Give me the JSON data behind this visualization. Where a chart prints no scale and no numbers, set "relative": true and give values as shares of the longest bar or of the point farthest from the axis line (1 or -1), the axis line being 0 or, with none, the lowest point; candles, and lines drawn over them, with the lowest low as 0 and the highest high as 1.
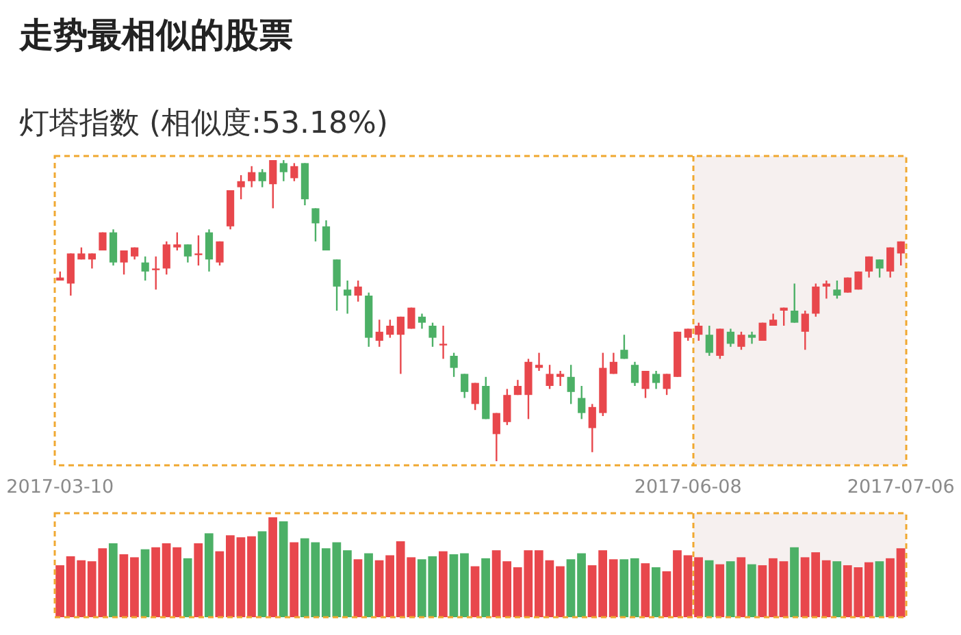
{
  "chart_data": [
    {
      "type": "candlestick",
      "title": "走势最相似的股票",
      "subtitle": "灯塔指数 (相似度:53.18%)",
      "relative": true,
      "categories": [
        "2017-03-10",
        null,
        null,
        null,
        null,
        null,
        null,
        null,
        null,
        null,
        null,
        null,
        null,
        null,
        null,
        null,
        null,
        null,
        null,
        null,
        null,
        null,
        null,
        null,
        null,
        null,
        null,
        null,
        null,
        null,
        null,
        null,
        null,
        null,
        null,
        null,
        null,
        null,
        null,
        null,
        null,
        null,
        null,
        null,
        null,
        null,
        null,
        null,
        null,
        null,
        null,
        null,
        null,
        null,
        null,
        null,
        null,
        null,
        null,
        "2017-06-08",
        null,
        null,
        null,
        null,
        null,
        null,
        null,
        null,
        null,
        null,
        null,
        null,
        null,
        null,
        null,
        null,
        null,
        null,
        null,
        "2017-07-06"
      ],
      "ohlc": [
        [
          0.6,
          0.63,
          0.6,
          0.61
        ],
        [
          0.59,
          0.69,
          0.55,
          0.69
        ],
        [
          0.67,
          0.71,
          0.67,
          0.69
        ],
        [
          0.67,
          0.69,
          0.64,
          0.69
        ],
        [
          0.7,
          0.76,
          0.7,
          0.76
        ],
        [
          0.76,
          0.77,
          0.65,
          0.66
        ],
        [
          0.66,
          0.7,
          0.62,
          0.7
        ],
        [
          0.68,
          0.71,
          0.67,
          0.71
        ],
        [
          0.66,
          0.68,
          0.6,
          0.63
        ],
        [
          0.64,
          0.68,
          0.57,
          0.64
        ],
        [
          0.64,
          0.73,
          0.62,
          0.72
        ],
        [
          0.71,
          0.76,
          0.7,
          0.72
        ],
        [
          0.72,
          0.72,
          0.66,
          0.68
        ],
        [
          0.69,
          0.75,
          0.65,
          0.69
        ],
        [
          0.76,
          0.77,
          0.63,
          0.67
        ],
        [
          0.66,
          0.73,
          0.65,
          0.73
        ],
        [
          0.78,
          0.9,
          0.77,
          0.9
        ],
        [
          0.91,
          0.95,
          0.87,
          0.93
        ],
        [
          0.93,
          0.98,
          0.91,
          0.96
        ],
        [
          0.96,
          0.97,
          0.91,
          0.93
        ],
        [
          0.92,
          1.0,
          0.84,
          1.0
        ],
        [
          0.99,
          1.0,
          0.93,
          0.96
        ],
        [
          0.94,
          0.99,
          0.93,
          0.98
        ],
        [
          0.99,
          0.99,
          0.85,
          0.87
        ],
        [
          0.84,
          0.84,
          0.73,
          0.79
        ],
        [
          0.78,
          0.8,
          0.7,
          0.7
        ],
        [
          0.67,
          0.67,
          0.5,
          0.58
        ],
        [
          0.57,
          0.6,
          0.49,
          0.55
        ],
        [
          0.55,
          0.6,
          0.53,
          0.58
        ],
        [
          0.55,
          0.56,
          0.38,
          0.41
        ],
        [
          0.4,
          0.47,
          0.38,
          0.43
        ],
        [
          0.42,
          0.47,
          0.41,
          0.45
        ],
        [
          0.42,
          0.48,
          0.29,
          0.48
        ],
        [
          0.44,
          0.51,
          0.44,
          0.51
        ],
        [
          0.48,
          0.49,
          0.44,
          0.46
        ],
        [
          0.45,
          0.46,
          0.38,
          0.41
        ],
        [
          0.39,
          0.45,
          0.34,
          0.39
        ],
        [
          0.35,
          0.36,
          0.28,
          0.31
        ],
        [
          0.29,
          0.29,
          0.21,
          0.23
        ],
        [
          0.19,
          0.26,
          0.17,
          0.26
        ],
        [
          0.25,
          0.28,
          0.14,
          0.14
        ],
        [
          0.09,
          0.16,
          0.0,
          0.16
        ],
        [
          0.13,
          0.24,
          0.12,
          0.22
        ],
        [
          0.22,
          0.27,
          0.22,
          0.25
        ],
        [
          0.22,
          0.34,
          0.14,
          0.33
        ],
        [
          0.31,
          0.36,
          0.3,
          0.32
        ],
        [
          0.25,
          0.32,
          0.24,
          0.29
        ],
        [
          0.28,
          0.3,
          0.25,
          0.29
        ],
        [
          0.28,
          0.32,
          0.19,
          0.23
        ],
        [
          0.21,
          0.25,
          0.14,
          0.16
        ],
        [
          0.11,
          0.19,
          0.03,
          0.18
        ],
        [
          0.16,
          0.36,
          0.15,
          0.31
        ],
        [
          0.29,
          0.36,
          0.29,
          0.33
        ],
        [
          0.37,
          0.42,
          0.34,
          0.34
        ],
        [
          0.32,
          0.33,
          0.25,
          0.26
        ],
        [
          0.24,
          0.3,
          0.21,
          0.3
        ],
        [
          0.29,
          0.3,
          0.24,
          0.26
        ],
        [
          0.24,
          0.29,
          0.22,
          0.29
        ],
        [
          0.28,
          0.43,
          0.28,
          0.43
        ],
        [
          0.41,
          0.44,
          0.4,
          0.44
        ],
        [
          0.42,
          0.46,
          0.4,
          0.45
        ],
        [
          0.42,
          0.45,
          0.35,
          0.36
        ],
        [
          0.35,
          0.44,
          0.34,
          0.44
        ],
        [
          0.43,
          0.44,
          0.38,
          0.39
        ],
        [
          0.38,
          0.43,
          0.37,
          0.42
        ],
        [
          0.42,
          0.43,
          0.39,
          0.41
        ],
        [
          0.4,
          0.46,
          0.4,
          0.46
        ],
        [
          0.45,
          0.49,
          0.45,
          0.47
        ],
        [
          0.5,
          0.51,
          0.45,
          0.51
        ],
        [
          0.5,
          0.59,
          0.46,
          0.46
        ],
        [
          0.43,
          0.5,
          0.37,
          0.49
        ],
        [
          0.49,
          0.59,
          0.48,
          0.58
        ],
        [
          0.58,
          0.6,
          0.54,
          0.59
        ],
        [
          0.57,
          0.6,
          0.54,
          0.55
        ],
        [
          0.56,
          0.61,
          0.56,
          0.61
        ],
        [
          0.57,
          0.63,
          0.57,
          0.63
        ],
        [
          0.63,
          0.68,
          0.61,
          0.68
        ],
        [
          0.67,
          0.67,
          0.61,
          0.64
        ],
        [
          0.63,
          0.71,
          0.61,
          0.71
        ],
        [
          0.69,
          0.73,
          0.65,
          0.73
        ]
      ],
      "colors": [
        "#e8474c",
        "#e8474c",
        "#e8474c",
        "#e8474c",
        "#e8474c",
        "#4cb066",
        "#e8474c",
        "#e8474c",
        "#4cb066",
        "#e8474c",
        "#e8474c",
        "#e8474c",
        "#4cb066",
        "#e8474c",
        "#4cb066",
        "#e8474c",
        "#e8474c",
        "#e8474c",
        "#e8474c",
        "#4cb066",
        "#e8474c",
        "#4cb066",
        "#e8474c",
        "#4cb066",
        "#4cb066",
        "#4cb066",
        "#4cb066",
        "#4cb066",
        "#e8474c",
        "#4cb066",
        "#e8474c",
        "#e8474c",
        "#e8474c",
        "#e8474c",
        "#4cb066",
        "#4cb066",
        "#e8474c",
        "#4cb066",
        "#4cb066",
        "#e8474c",
        "#4cb066",
        "#e8474c",
        "#e8474c",
        "#e8474c",
        "#e8474c",
        "#e8474c",
        "#e8474c",
        "#e8474c",
        "#4cb066",
        "#4cb066",
        "#e8474c",
        "#e8474c",
        "#e8474c",
        "#4cb066",
        "#4cb066",
        "#e8474c",
        "#4cb066",
        "#e8474c",
        "#e8474c",
        "#e8474c",
        "#e8474c",
        "#4cb066",
        "#e8474c",
        "#4cb066",
        "#e8474c",
        "#4cb066",
        "#e8474c",
        "#e8474c",
        "#e8474c",
        "#4cb066",
        "#e8474c",
        "#e8474c",
        "#e8474c",
        "#4cb066",
        "#e8474c",
        "#e8474c",
        "#e8474c",
        "#4cb066",
        "#e8474c",
        "#e8474c"
      ],
      "bands": [
        {
          "axis": "x",
          "from": "2017-06-08",
          "to": "2017-07-06",
          "color": "#f6f0ef"
        }
      ]
    },
    {
      "type": "bar",
      "relative": true,
      "tick_labels": false,
      "categories": [
        "2017-03-10",
        null,
        null,
        null,
        null,
        null,
        null,
        null,
        null,
        null,
        null,
        null,
        null,
        null,
        null,
        null,
        null,
        null,
        null,
        null,
        null,
        null,
        null,
        null,
        null,
        null,
        null,
        null,
        null,
        null,
        null,
        null,
        null,
        null,
        null,
        null,
        null,
        null,
        null,
        null,
        null,
        null,
        null,
        null,
        null,
        null,
        null,
        null,
        null,
        null,
        null,
        null,
        null,
        null,
        null,
        null,
        null,
        null,
        null,
        "2017-06-08",
        null,
        null,
        null,
        null,
        null,
        null,
        null,
        null,
        null,
        null,
        null,
        null,
        null,
        null,
        null,
        null,
        null,
        null,
        null,
        "2017-07-06"
      ],
      "values": [
        0.52,
        0.61,
        0.57,
        0.56,
        0.69,
        0.74,
        0.63,
        0.6,
        0.68,
        0.7,
        0.74,
        0.7,
        0.59,
        0.74,
        0.84,
        0.66,
        0.82,
        0.8,
        0.81,
        0.86,
        1.0,
        0.96,
        0.75,
        0.79,
        0.75,
        0.69,
        0.75,
        0.67,
        0.58,
        0.64,
        0.57,
        0.62,
        0.76,
        0.6,
        0.58,
        0.61,
        0.66,
        0.63,
        0.64,
        0.51,
        0.59,
        0.67,
        0.56,
        0.5,
        0.67,
        0.67,
        0.57,
        0.51,
        0.58,
        0.64,
        0.52,
        0.67,
        0.58,
        0.58,
        0.59,
        0.54,
        0.5,
        0.46,
        0.67,
        0.62,
        0.6,
        0.57,
        0.53,
        0.56,
        0.6,
        0.53,
        0.52,
        0.59,
        0.56,
        0.7,
        0.6,
        0.65,
        0.57,
        0.56,
        0.52,
        0.5,
        0.55,
        0.56,
        0.59,
        0.69
      ],
      "colors": [
        "#e8474c",
        "#e8474c",
        "#e8474c",
        "#e8474c",
        "#e8474c",
        "#4cb066",
        "#e8474c",
        "#e8474c",
        "#4cb066",
        "#e8474c",
        "#e8474c",
        "#e8474c",
        "#4cb066",
        "#e8474c",
        "#4cb066",
        "#e8474c",
        "#e8474c",
        "#e8474c",
        "#e8474c",
        "#4cb066",
        "#e8474c",
        "#4cb066",
        "#e8474c",
        "#4cb066",
        "#4cb066",
        "#4cb066",
        "#4cb066",
        "#4cb066",
        "#e8474c",
        "#4cb066",
        "#e8474c",
        "#e8474c",
        "#e8474c",
        "#e8474c",
        "#4cb066",
        "#4cb066",
        "#e8474c",
        "#4cb066",
        "#4cb066",
        "#e8474c",
        "#4cb066",
        "#e8474c",
        "#e8474c",
        "#e8474c",
        "#e8474c",
        "#e8474c",
        "#e8474c",
        "#e8474c",
        "#4cb066",
        "#4cb066",
        "#e8474c",
        "#e8474c",
        "#e8474c",
        "#4cb066",
        "#4cb066",
        "#e8474c",
        "#4cb066",
        "#e8474c",
        "#e8474c",
        "#e8474c",
        "#e8474c",
        "#4cb066",
        "#e8474c",
        "#4cb066",
        "#e8474c",
        "#4cb066",
        "#e8474c",
        "#e8474c",
        "#e8474c",
        "#4cb066",
        "#e8474c",
        "#e8474c",
        "#e8474c",
        "#4cb066",
        "#e8474c",
        "#e8474c",
        "#e8474c",
        "#4cb066",
        "#e8474c",
        "#e8474c"
      ],
      "bands": [
        {
          "axis": "x",
          "from": "2017-06-08",
          "to": "2017-07-06",
          "color": "#f6f0ef"
        }
      ]
    }
  ]
}
